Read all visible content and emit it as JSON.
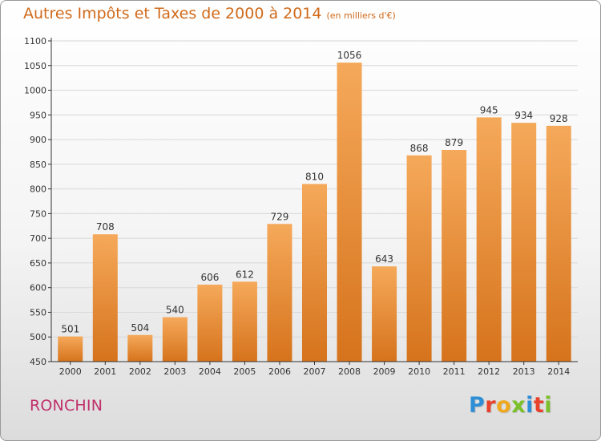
{
  "header": {
    "title": "Autres Impôts et Taxes de 2000 à 2014",
    "subtitle": "(en milliers d'€)"
  },
  "footer": {
    "city": "RONCHIN",
    "logo": "Proxiti"
  },
  "colors": {
    "bar_top": "#f5a95a",
    "bar_bottom": "#d6731c",
    "title": "#d06a1a",
    "city": "#c0306a",
    "grid": "#d8d8d8",
    "axis": "#333333"
  },
  "chart_data": {
    "type": "bar",
    "title": "Autres Impôts et Taxes de 2000 à 2014",
    "subtitle": "(en milliers d'€)",
    "xlabel": "",
    "ylabel": "",
    "categories": [
      "2000",
      "2001",
      "2002",
      "2003",
      "2004",
      "2005",
      "2006",
      "2007",
      "2008",
      "2009",
      "2010",
      "2011",
      "2012",
      "2013",
      "2014"
    ],
    "values": [
      501,
      708,
      504,
      540,
      606,
      612,
      729,
      810,
      1056,
      643,
      868,
      879,
      945,
      934,
      928
    ],
    "ylim": [
      450,
      1100
    ],
    "yticks": [
      450,
      500,
      550,
      600,
      650,
      700,
      750,
      800,
      850,
      900,
      950,
      1000,
      1050,
      1100
    ],
    "grid": true,
    "legend": "none",
    "data_labels": true
  }
}
